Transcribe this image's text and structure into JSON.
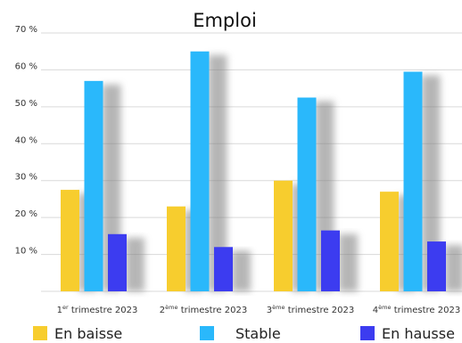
{
  "chart_data": {
    "type": "bar",
    "title": "Emploi",
    "categories": [
      {
        "prefix": "1",
        "sup": "er",
        "suffix": " trimestre 2023"
      },
      {
        "prefix": "2",
        "sup": "ème",
        "suffix": " trimestre 2023"
      },
      {
        "prefix": "3",
        "sup": "ème",
        "suffix": " trimestre 2023"
      },
      {
        "prefix": "4",
        "sup": "ème",
        "suffix": " trimestre 2023"
      }
    ],
    "series": [
      {
        "name": "En baisse",
        "color": "#f7cd2e",
        "values": [
          27.5,
          23,
          30,
          27
        ]
      },
      {
        "name": "Stable",
        "color": "#2ab8fb",
        "values": [
          57,
          65,
          52.5,
          59.5
        ]
      },
      {
        "name": "En hausse",
        "color": "#3c3cf0",
        "values": [
          15.5,
          12,
          16.5,
          13.5
        ]
      }
    ],
    "yticks": [
      "10 %",
      "20 %",
      "30 %",
      "40 %",
      "50 %",
      "60 %",
      "70 %"
    ],
    "ytick_values": [
      10,
      20,
      30,
      40,
      50,
      60,
      70
    ],
    "ylim": [
      0,
      70
    ],
    "grid": true,
    "shadow": true,
    "legend": "bottom"
  }
}
